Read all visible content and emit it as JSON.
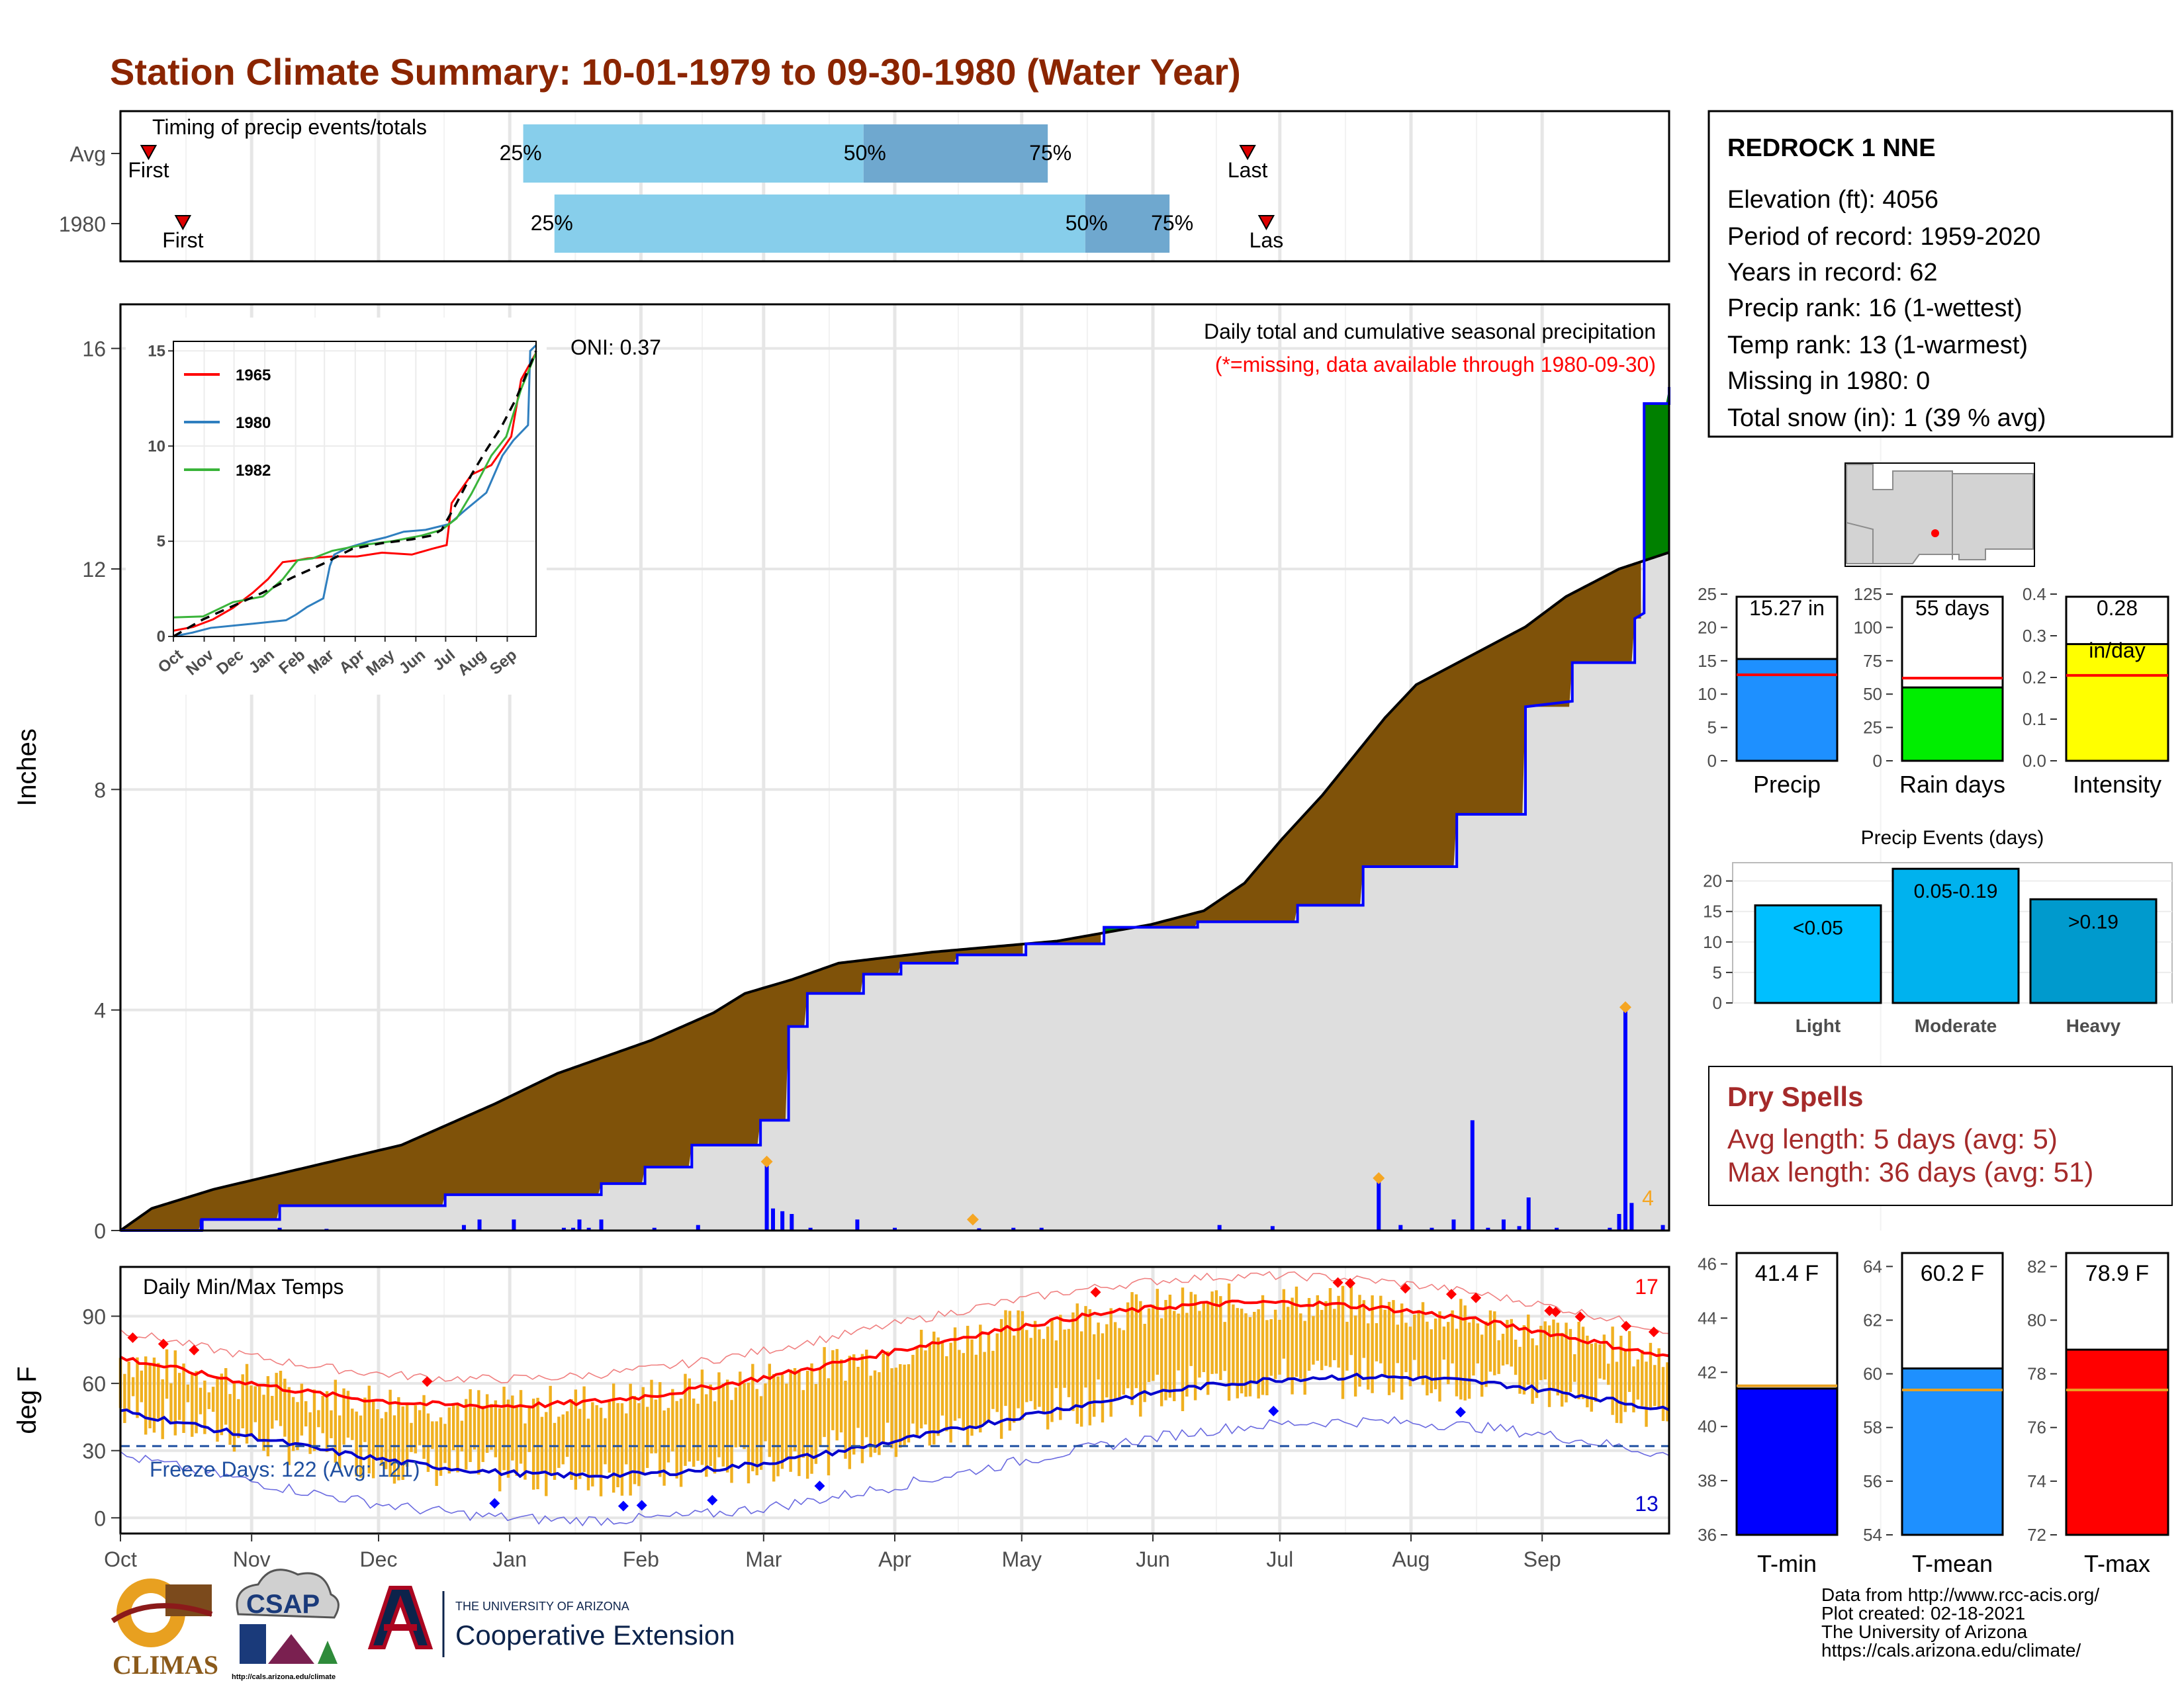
{
  "title": "Station Climate Summary: 10-01-1979 to 09-30-1980 (Water Year)",
  "colors": {
    "title": "#8b2500",
    "brown": "#7f5209",
    "green": "#008000",
    "blue": "#0000ff",
    "lightblue": "#87ceeb",
    "midblue": "#6fa8cf",
    "gray": "#dedede",
    "orange": "#f0b020",
    "red": "#ff0000",
    "navy": "#0000cd",
    "precipbar": "#1e90ff",
    "raindays": "#00ee00",
    "intensity": "#ffff00",
    "light": "#00bfff",
    "moderate": "#00b2ee",
    "heavy": "#009acd",
    "dryspell": "#a52a2a"
  },
  "months": [
    "Oct",
    "Nov",
    "Dec",
    "Jan",
    "Feb",
    "Mar",
    "Apr",
    "May",
    "Jun",
    "Jul",
    "Aug",
    "Sep"
  ],
  "timing": {
    "label": "Timing of precip events/totals",
    "rows": [
      {
        "name": "Avg",
        "first_label": "First",
        "last_label": "Last",
        "q25": "25%",
        "q50": "50%",
        "q75": "75%",
        "first_day": 9,
        "last_day": 361,
        "p25": 129,
        "p50": 238,
        "p75": 297
      },
      {
        "name": "1980",
        "first_label": "First",
        "last_label": "Las",
        "q25": "25%",
        "q50": "50%",
        "q75": "75%",
        "first_day": 20,
        "last_day": 367,
        "p25": 139,
        "p50": 309,
        "p75": 336
      }
    ]
  },
  "station": {
    "name": "REDROCK 1 NNE",
    "lines": [
      "Elevation (ft): 4056",
      "Period of record: 1959-2020",
      "Years in record: 62",
      "Precip rank: 16 (1-wettest)",
      "Temp rank: 13 (1-warmest)",
      "Missing in 1980: 0",
      "Total snow (in): 1 (39 % avg)"
    ]
  },
  "chart_data": [
    {
      "type": "area",
      "name": "precip",
      "title": "Daily total and cumulative seasonal precipitation",
      "subtitle": "(*=missing, data available through 1980-09-30)",
      "ylabel": "Inches",
      "ylim": [
        0,
        16.8
      ],
      "yticks": [
        0,
        4,
        8,
        12,
        16
      ],
      "oni": "ONI: 0.37",
      "max_daily_label": "4",
      "cumulative_avg": [
        [
          0,
          0
        ],
        [
          10,
          0.4
        ],
        [
          30,
          0.75
        ],
        [
          60,
          1.15
        ],
        [
          90,
          1.55
        ],
        [
          120,
          2.3
        ],
        [
          140,
          2.85
        ],
        [
          170,
          3.45
        ],
        [
          190,
          3.95
        ],
        [
          200,
          4.3
        ],
        [
          215,
          4.55
        ],
        [
          230,
          4.85
        ],
        [
          260,
          5.05
        ],
        [
          300,
          5.25
        ],
        [
          330,
          5.55
        ],
        [
          347,
          5.8
        ],
        [
          360,
          6.3
        ],
        [
          372,
          7.1
        ],
        [
          385,
          7.9
        ],
        [
          395,
          8.6
        ],
        [
          405,
          9.3
        ],
        [
          415,
          9.9
        ],
        [
          430,
          10.35
        ],
        [
          450,
          10.95
        ],
        [
          463,
          11.5
        ],
        [
          480,
          12.0
        ],
        [
          496,
          12.3
        ]
      ],
      "cumulative_1980": [
        [
          0,
          0
        ],
        [
          26,
          0
        ],
        [
          26,
          0.2
        ],
        [
          51,
          0.2
        ],
        [
          51,
          0.45
        ],
        [
          104,
          0.45
        ],
        [
          104,
          0.65
        ],
        [
          154,
          0.65
        ],
        [
          154,
          0.85
        ],
        [
          168,
          0.85
        ],
        [
          168,
          1.15
        ],
        [
          183,
          1.15
        ],
        [
          183,
          1.55
        ],
        [
          205,
          1.55
        ],
        [
          205,
          2.0
        ],
        [
          214,
          2.0
        ],
        [
          214,
          3.7
        ],
        [
          220,
          3.7
        ],
        [
          220,
          4.3
        ],
        [
          238,
          4.3
        ],
        [
          238,
          4.65
        ],
        [
          250,
          4.65
        ],
        [
          250,
          4.85
        ],
        [
          268,
          4.85
        ],
        [
          268,
          5.0
        ],
        [
          290,
          5.0
        ],
        [
          290,
          5.2
        ],
        [
          315,
          5.2
        ],
        [
          315,
          5.5
        ],
        [
          345,
          5.5
        ],
        [
          345,
          5.6
        ],
        [
          377,
          5.6
        ],
        [
          377,
          5.9
        ],
        [
          398,
          5.9
        ],
        [
          398,
          6.6
        ],
        [
          428,
          6.6
        ],
        [
          428,
          7.55
        ],
        [
          450,
          7.55
        ],
        [
          450,
          9.5
        ],
        [
          465,
          9.6
        ],
        [
          465,
          10.3
        ],
        [
          485,
          10.3
        ],
        [
          485,
          11.1
        ],
        [
          488,
          11.2
        ],
        [
          488,
          15.0
        ],
        [
          496,
          15.0
        ],
        [
          496,
          15.3
        ]
      ],
      "daily_1980": [
        [
          26,
          0.2
        ],
        [
          51,
          0.05
        ],
        [
          66,
          0.03
        ],
        [
          110,
          0.1
        ],
        [
          115,
          0.2
        ],
        [
          126,
          0.2
        ],
        [
          142,
          0.05
        ],
        [
          145,
          0.05
        ],
        [
          147,
          0.2
        ],
        [
          150,
          0.05
        ],
        [
          154,
          0.2
        ],
        [
          171,
          0.05
        ],
        [
          185,
          0.1
        ],
        [
          207,
          1.2
        ],
        [
          209,
          0.4
        ],
        [
          212,
          0.35
        ],
        [
          215,
          0.3
        ],
        [
          221,
          0.05
        ],
        [
          236,
          0.2
        ],
        [
          248,
          0.05
        ],
        [
          275,
          0.04
        ],
        [
          286,
          0.05
        ],
        [
          295,
          0.05
        ],
        [
          352,
          0.1
        ],
        [
          369,
          0.08
        ],
        [
          403,
          1.0
        ],
        [
          410,
          0.1
        ],
        [
          420,
          0.05
        ],
        [
          427,
          0.2
        ],
        [
          433,
          2.0
        ],
        [
          438,
          0.05
        ],
        [
          443,
          0.2
        ],
        [
          448,
          0.08
        ],
        [
          451,
          0.6
        ],
        [
          460,
          0.05
        ],
        [
          477,
          0.05
        ],
        [
          480,
          0.3
        ],
        [
          482,
          4.0
        ],
        [
          484,
          0.5
        ],
        [
          494,
          0.1
        ]
      ],
      "markers_1980": [
        [
          207,
          1.25
        ],
        [
          273,
          0.2
        ],
        [
          403,
          0.95
        ],
        [
          482,
          4.05
        ]
      ],
      "x_month_starts": [
        0,
        31,
        61,
        92,
        123,
        152,
        183,
        213,
        244,
        274,
        305,
        336,
        366
      ]
    },
    {
      "type": "line",
      "name": "inset",
      "xticks": [
        "Oct",
        "Nov",
        "Dec",
        "Jan",
        "Feb",
        "Mar",
        "Apr",
        "May",
        "Jun",
        "Jul",
        "Aug",
        "Sep"
      ],
      "yticks": [
        0,
        5,
        10,
        15
      ],
      "ylim": [
        0,
        15.5
      ],
      "series": [
        {
          "name": "1965",
          "color": "#ff0000",
          "values": [
            [
              0,
              0.3
            ],
            [
              20,
              0.5
            ],
            [
              40,
              0.9
            ],
            [
              60,
              1.5
            ],
            [
              80,
              2.3
            ],
            [
              95,
              3.0
            ],
            [
              110,
              3.9
            ],
            [
              125,
              4.0
            ],
            [
              135,
              4.1
            ],
            [
              160,
              4.2
            ],
            [
              185,
              4.2
            ],
            [
              210,
              4.4
            ],
            [
              240,
              4.3
            ],
            [
              260,
              4.6
            ],
            [
              275,
              4.8
            ],
            [
              280,
              7.0
            ],
            [
              300,
              8.5
            ],
            [
              320,
              9.0
            ],
            [
              340,
              10.5
            ],
            [
              350,
              13.5
            ],
            [
              365,
              14.9
            ]
          ]
        },
        {
          "name": "1980",
          "color": "#2f7fbf",
          "values": [
            [
              0,
              0
            ],
            [
              26,
              0.2
            ],
            [
              51,
              0.45
            ],
            [
              104,
              0.65
            ],
            [
              154,
              0.85
            ],
            [
              168,
              1.15
            ],
            [
              183,
              1.55
            ],
            [
              205,
              2.0
            ],
            [
              214,
              3.7
            ],
            [
              220,
              4.3
            ],
            [
              238,
              4.65
            ],
            [
              268,
              5.0
            ],
            [
              290,
              5.2
            ],
            [
              315,
              5.5
            ],
            [
              345,
              5.6
            ],
            [
              377,
              5.9
            ],
            [
              398,
              6.6
            ],
            [
              428,
              7.55
            ],
            [
              450,
              9.5
            ],
            [
              465,
              10.3
            ],
            [
              485,
              11.1
            ],
            [
              488,
              15.0
            ],
            [
              496,
              15.3
            ]
          ]
        },
        {
          "name": "1982",
          "color": "#3ab43a",
          "values": [
            [
              0,
              1.0
            ],
            [
              30,
              1.05
            ],
            [
              60,
              1.8
            ],
            [
              90,
              2.1
            ],
            [
              110,
              3.0
            ],
            [
              125,
              4.0
            ],
            [
              140,
              4.1
            ],
            [
              160,
              4.5
            ],
            [
              190,
              4.8
            ],
            [
              220,
              5.0
            ],
            [
              250,
              5.3
            ],
            [
              270,
              5.6
            ],
            [
              285,
              6.2
            ],
            [
              300,
              7.5
            ],
            [
              320,
              9.5
            ],
            [
              335,
              10.5
            ],
            [
              350,
              13.0
            ],
            [
              365,
              14.9
            ]
          ]
        },
        {
          "name": "Avg",
          "color": "#000000",
          "values": [
            [
              0,
              0
            ],
            [
              30,
              0.9
            ],
            [
              60,
              1.6
            ],
            [
              90,
              2.3
            ],
            [
              120,
              3.1
            ],
            [
              150,
              3.8
            ],
            [
              180,
              4.6
            ],
            [
              210,
              4.9
            ],
            [
              240,
              5.1
            ],
            [
              260,
              5.3
            ],
            [
              270,
              5.6
            ],
            [
              285,
              7.0
            ],
            [
              300,
              8.5
            ],
            [
              315,
              9.8
            ],
            [
              330,
              11.0
            ],
            [
              345,
              12.5
            ],
            [
              365,
              15.0
            ]
          ]
        }
      ]
    },
    {
      "type": "bar",
      "name": "temps",
      "title": "Daily Min/Max Temps",
      "ylabel": "deg F",
      "ylim": [
        -7,
        112
      ],
      "yticks": [
        0,
        30,
        60,
        90
      ],
      "freeze_label": "Freeze Days: 122 (Avg: 121)",
      "freeze_value": 32,
      "count_high_label": "17",
      "count_low_label": "13",
      "xticks": [
        "Oct",
        "Nov",
        "Dec",
        "Jan",
        "Feb",
        "Mar",
        "Apr",
        "May",
        "Jun",
        "Jul",
        "Aug",
        "Sep"
      ]
    },
    {
      "type": "bar",
      "name": "precip-total",
      "label": "Precip",
      "value": 15.27,
      "value_label": "15.27 in",
      "avg": 12.9,
      "ylim": [
        0,
        25
      ],
      "yticks": [
        0,
        5,
        10,
        15,
        20,
        25
      ]
    },
    {
      "type": "bar",
      "name": "rain-days",
      "label": "Rain days",
      "value": 55,
      "value_label": "55 days",
      "avg": 62,
      "ylim": [
        0,
        125
      ],
      "yticks": [
        0,
        25,
        50,
        75,
        100,
        125
      ]
    },
    {
      "type": "bar",
      "name": "intensity",
      "label": "Intensity",
      "value": 0.28,
      "value_label": "0.28",
      "value_label2": "in/day",
      "avg": 0.205,
      "ylim": [
        0,
        0.4
      ],
      "yticks": [
        0.0,
        0.1,
        0.2,
        0.3,
        0.4
      ]
    },
    {
      "type": "bar",
      "name": "precip-events",
      "title": "Precip Events (days)",
      "categories": [
        "Light",
        "Moderate",
        "Heavy"
      ],
      "values": [
        16,
        22,
        17
      ],
      "labels": [
        "<0.05",
        "0.05-0.19",
        ">0.19"
      ],
      "ylim": [
        0,
        23
      ],
      "yticks": [
        0,
        5,
        10,
        15,
        20
      ]
    },
    {
      "type": "bar",
      "name": "t-min",
      "label": "T-min",
      "value": 41.4,
      "value_label": "41.4 F",
      "avg": 41.5,
      "ylim": [
        36,
        46.5
      ],
      "yticks": [
        36,
        38,
        40,
        42,
        44,
        46
      ]
    },
    {
      "type": "bar",
      "name": "t-mean",
      "label": "T-mean",
      "value": 60.2,
      "value_label": "60.2 F",
      "avg": 59.4,
      "ylim": [
        54,
        64.6
      ],
      "yticks": [
        54,
        56,
        58,
        60,
        62,
        64
      ]
    },
    {
      "type": "bar",
      "name": "t-max",
      "label": "T-max",
      "value": 78.9,
      "value_label": "78.9 F",
      "avg": 77.4,
      "ylim": [
        72,
        82.6
      ],
      "yticks": [
        72,
        74,
        76,
        78,
        80,
        82
      ]
    }
  ],
  "dry_spells": {
    "title": "Dry Spells",
    "avg": "Avg length: 5 days (avg: 5)",
    "max": "Max length: 36 days (avg: 51)"
  },
  "footer": [
    "Data from http://www.rcc-acis.org/",
    "Plot created: 02-18-2021",
    "The University of Arizona",
    "https://cals.arizona.edu/climate/"
  ],
  "logos": {
    "climas": "CLIMAS",
    "csap": "CSAP",
    "csap_url": "http://cals.arizona.edu/climate",
    "ua_small": "THE UNIVERSITY OF ARIZONA",
    "ua_big": "Cooperative Extension"
  }
}
